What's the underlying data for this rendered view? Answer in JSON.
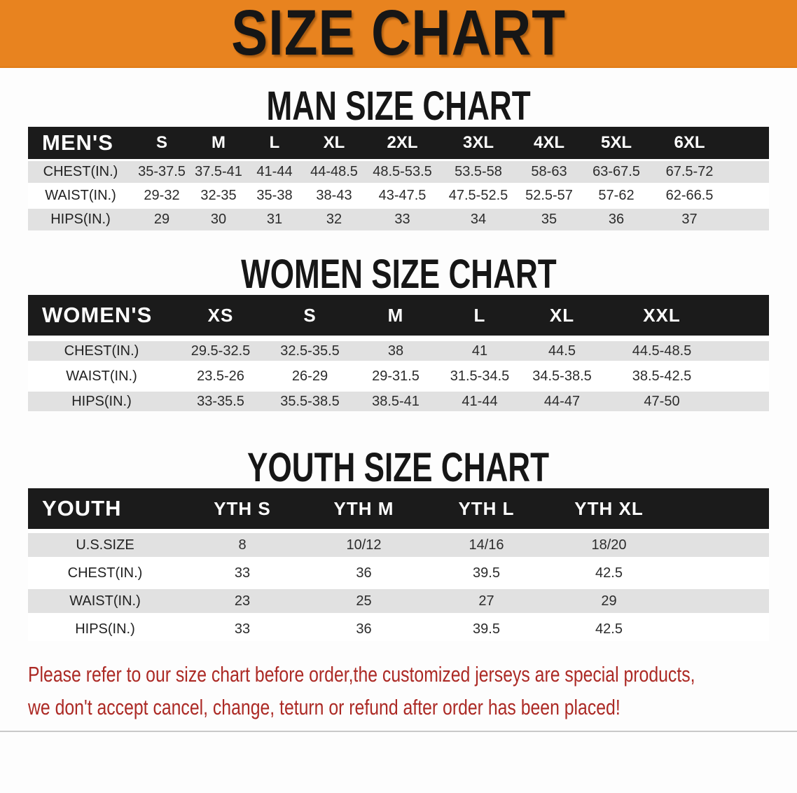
{
  "banner": {
    "title": "SIZE CHART"
  },
  "sections": [
    {
      "heading": "MAN SIZE CHART",
      "table_label": "MEN'S",
      "columns": [
        "S",
        "M",
        "L",
        "XL",
        "2XL",
        "3XL",
        "4XL",
        "5XL",
        "6XL"
      ],
      "rows": [
        {
          "label": "CHEST(IN.)",
          "values": [
            "35-37.5",
            "37.5-41",
            "41-44",
            "44-48.5",
            "48.5-53.5",
            "53.5-58",
            "58-63",
            "63-67.5",
            "67.5-72"
          ]
        },
        {
          "label": "WAIST(IN.)",
          "values": [
            "29-32",
            "32-35",
            "35-38",
            "38-43",
            "43-47.5",
            "47.5-52.5",
            "52.5-57",
            "57-62",
            "62-66.5"
          ]
        },
        {
          "label": "HIPS(IN.)",
          "values": [
            "29",
            "30",
            "31",
            "32",
            "33",
            "34",
            "35",
            "36",
            "37"
          ]
        }
      ]
    },
    {
      "heading": "WOMEN SIZE CHART",
      "table_label": "WOMEN'S",
      "columns": [
        "XS",
        "S",
        "M",
        "L",
        "XL",
        "XXL"
      ],
      "rows": [
        {
          "label": "CHEST(IN.)",
          "values": [
            "29.5-32.5",
            "32.5-35.5",
            "38",
            "41",
            "44.5",
            "44.5-48.5"
          ]
        },
        {
          "label": "WAIST(IN.)",
          "values": [
            "23.5-26",
            "26-29",
            "29-31.5",
            "31.5-34.5",
            "34.5-38.5",
            "38.5-42.5"
          ]
        },
        {
          "label": "HIPS(IN.)",
          "values": [
            "33-35.5",
            "35.5-38.5",
            "38.5-41",
            "41-44",
            "44-47",
            "47-50"
          ]
        }
      ]
    },
    {
      "heading": "YOUTH SIZE CHART",
      "table_label": "YOUTH",
      "columns": [
        "YTH S",
        "YTH M",
        "YTH L",
        "YTH XL"
      ],
      "rows": [
        {
          "label": "U.S.SIZE",
          "values": [
            "8",
            "10/12",
            "14/16",
            "18/20"
          ]
        },
        {
          "label": "CHEST(IN.)",
          "values": [
            "33",
            "36",
            "39.5",
            "42.5"
          ]
        },
        {
          "label": "WAIST(IN.)",
          "values": [
            "23",
            "25",
            "27",
            "29"
          ]
        },
        {
          "label": "HIPS(IN.)",
          "values": [
            "33",
            "36",
            "39.5",
            "42.5"
          ]
        }
      ]
    }
  ],
  "footer": {
    "line1": "Please refer to our size chart before order,the customized jerseys are special products,",
    "line2": "we don't accept cancel, change, teturn or refund after order has been placed!"
  },
  "colors": {
    "banner_bg": "#E8831F",
    "header_bar_bg": "#1B1B1B",
    "stripe_gray": "#E1E1E1",
    "footer_red": "#AC2A25",
    "heading_black": "#161616"
  }
}
